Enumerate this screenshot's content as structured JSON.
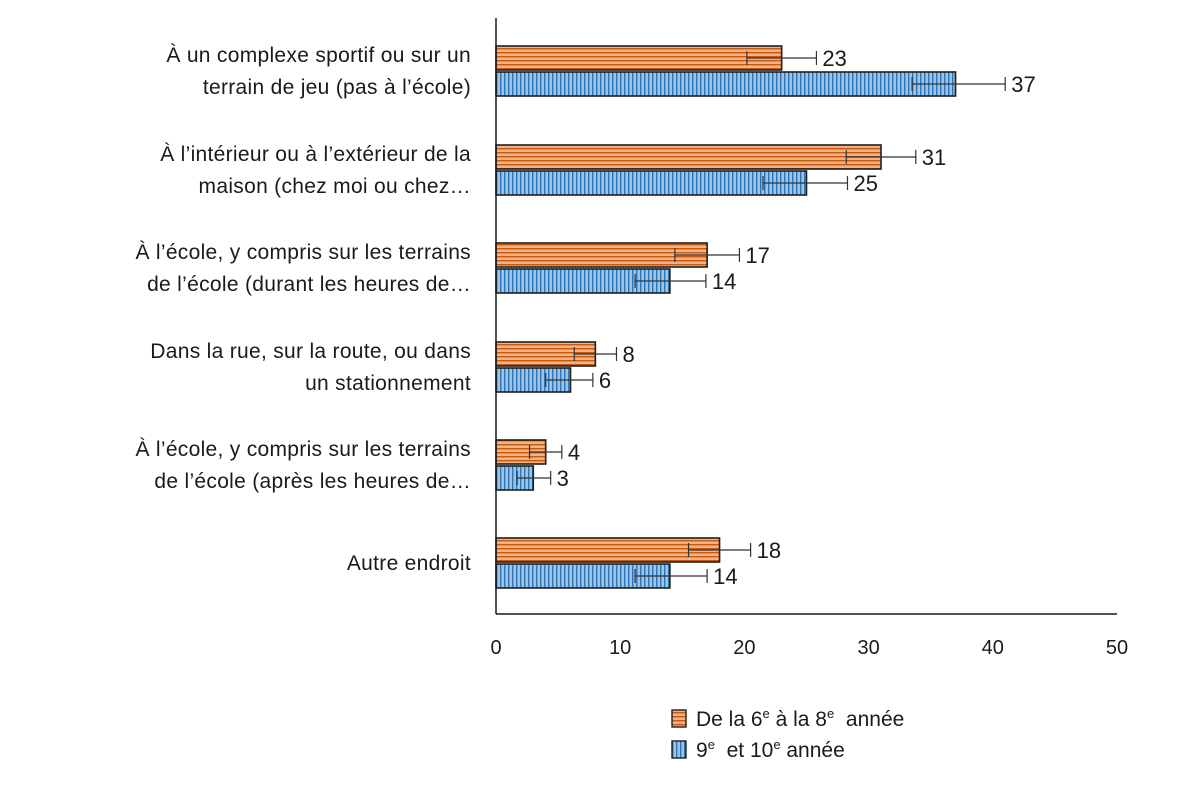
{
  "chart_data": {
    "type": "bar",
    "orientation": "horizontal",
    "categories": [
      [
        "À un complexe sportif ou sur un",
        "terrain de jeu (pas à l’école)"
      ],
      [
        "À l’intérieur ou à l’extérieur de la",
        "maison (chez moi ou chez…"
      ],
      [
        "À l’école, y compris sur les terrains",
        "de l’école (durant les heures de…"
      ],
      [
        "Dans la rue, sur la route, ou dans",
        "un stationnement"
      ],
      [
        "À l’école, y compris sur les terrains",
        "de l’école (après les heures de…"
      ],
      [
        "Autre endroit"
      ]
    ],
    "series": [
      {
        "name": "De la 6e à la 8e année",
        "legend_parts": [
          "De la 6",
          "e",
          " à la 8",
          "e",
          "  année"
        ],
        "color": "#f4b183",
        "stripe": "#c55a11",
        "pattern": "horizontal",
        "values": [
          23,
          31,
          17,
          8,
          4,
          18
        ],
        "error_low": [
          20.2,
          28.2,
          14.4,
          6.3,
          2.7,
          15.5
        ],
        "error_high": [
          25.8,
          33.8,
          19.6,
          9.7,
          5.3,
          20.5
        ]
      },
      {
        "name": "9e et 10e année",
        "legend_parts": [
          "9",
          "e",
          "  et 10",
          "e",
          " année"
        ],
        "color": "#9dc3e6",
        "stripe": "#2e75b6",
        "pattern": "vertical",
        "values": [
          37,
          25,
          14,
          6,
          3,
          14
        ],
        "error_low": [
          33.5,
          21.5,
          11.2,
          4.0,
          1.7,
          11.2
        ],
        "error_high": [
          41.0,
          28.3,
          16.9,
          7.8,
          4.4,
          17.0
        ]
      }
    ],
    "xlim": [
      0,
      50
    ],
    "xticks": [
      "0",
      "10",
      "20",
      "30",
      "40",
      "50"
    ],
    "xlabel": "",
    "ylabel": "",
    "title": "",
    "grid": false,
    "legend_position": "bottom-center"
  }
}
